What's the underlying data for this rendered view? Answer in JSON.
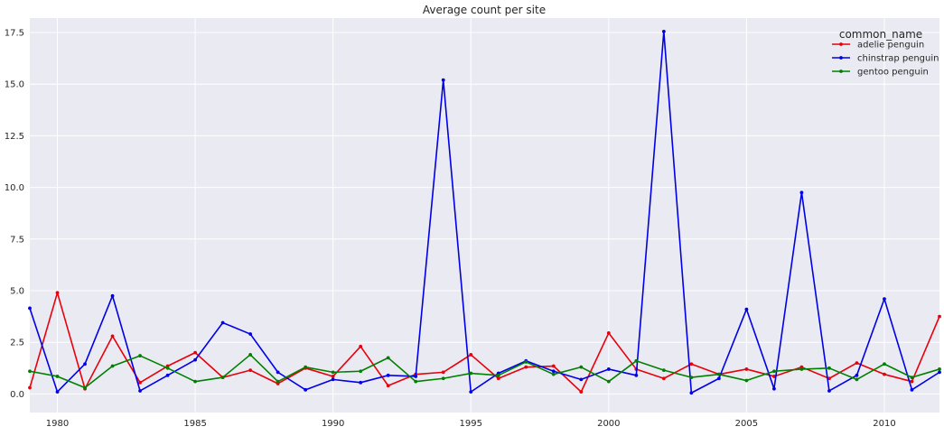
{
  "chart_data": {
    "type": "line",
    "title": "Average count per site",
    "xlabel": "",
    "ylabel": "",
    "xlim": [
      1979,
      2012
    ],
    "ylim": [
      -0.9,
      18.2
    ],
    "x_ticks": [
      1980,
      1985,
      1990,
      1995,
      2000,
      2005,
      2010
    ],
    "y_ticks": [
      0.0,
      2.5,
      5.0,
      7.5,
      10.0,
      12.5,
      15.0,
      17.5
    ],
    "x_tick_labels": [
      "1980",
      "1985",
      "1990",
      "1995",
      "2000",
      "2005",
      "2010"
    ],
    "y_tick_labels": [
      "0.0",
      "2.5",
      "5.0",
      "7.5",
      "10.0",
      "12.5",
      "15.0",
      "17.5"
    ],
    "grid": true,
    "legend": {
      "title": "common_name",
      "position": "top-right"
    },
    "x": [
      1979,
      1980,
      1981,
      1982,
      1983,
      1984,
      1985,
      1986,
      1987,
      1988,
      1989,
      1990,
      1991,
      1992,
      1993,
      1994,
      1995,
      1996,
      1997,
      1998,
      1999,
      2000,
      2001,
      2002,
      2003,
      2004,
      2005,
      2006,
      2007,
      2008,
      2009,
      2010,
      2011,
      2012
    ],
    "series": [
      {
        "name": "adelie penguin",
        "color": "#e8000b",
        "values": [
          0.3,
          4.9,
          0.25,
          2.8,
          0.55,
          1.35,
          2.0,
          0.8,
          1.15,
          0.5,
          1.25,
          0.85,
          2.3,
          0.4,
          0.95,
          1.05,
          1.9,
          0.75,
          1.3,
          1.35,
          0.1,
          2.95,
          1.2,
          0.75,
          1.45,
          0.95,
          1.2,
          0.85,
          1.3,
          0.75,
          1.5,
          0.95,
          0.6,
          3.75
        ]
      },
      {
        "name": "chinstrap penguin",
        "color": "#0000e8",
        "values": [
          4.15,
          0.1,
          1.45,
          4.75,
          0.15,
          0.9,
          1.65,
          3.45,
          2.9,
          1.05,
          0.2,
          0.7,
          0.55,
          0.9,
          0.85,
          15.2,
          0.1,
          1.0,
          1.6,
          1.1,
          0.7,
          1.2,
          0.9,
          17.55,
          0.05,
          0.75,
          4.1,
          0.25,
          9.75,
          0.15,
          0.9,
          4.6,
          0.2,
          1.05
        ]
      },
      {
        "name": "gentoo penguin",
        "color": "#008000",
        "values": [
          1.1,
          0.85,
          0.3,
          1.35,
          1.85,
          1.25,
          0.6,
          0.8,
          1.9,
          0.6,
          1.3,
          1.05,
          1.1,
          1.75,
          0.6,
          0.75,
          1.0,
          0.9,
          1.55,
          0.95,
          1.3,
          0.6,
          1.6,
          1.15,
          0.8,
          0.95,
          0.65,
          1.1,
          1.2,
          1.25,
          0.7,
          1.45,
          0.8,
          1.2
        ]
      }
    ]
  }
}
